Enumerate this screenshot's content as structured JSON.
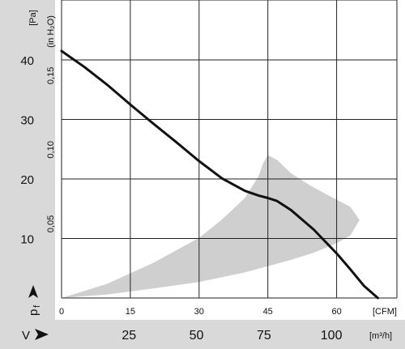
{
  "chart_data": {
    "type": "line",
    "x_label": "[CFM]",
    "x_unit_secondary": "[m³/h]",
    "y_unit": "[Pa]",
    "y_unit_secondary": "(in H₂O)",
    "y_symbol": "p",
    "y_symbol_sub": "f",
    "x_symbol": "V",
    "xlim": [
      0,
      70
    ],
    "ylim": [
      0,
      48
    ],
    "cfm_ticks": [
      "0",
      "15",
      "30",
      "45",
      "60"
    ],
    "cfm_tick_values": [
      0,
      15,
      30,
      45,
      60
    ],
    "m3h_ticks": [
      "25",
      "50",
      "75",
      "100"
    ],
    "m3h_tick_values": [
      25,
      50,
      75,
      100
    ],
    "pa_ticks": [
      "10",
      "20",
      "30",
      "40"
    ],
    "pa_tick_values": [
      10,
      20,
      30,
      40
    ],
    "h2o_ticks": [
      "0,05",
      "0,10",
      "0,15"
    ],
    "h2o_tick_values": [
      0.05,
      0.1,
      0.15
    ],
    "grid": true,
    "series": [
      {
        "x": [
          0,
          5,
          10,
          15,
          20,
          25,
          30,
          35,
          40,
          43,
          45,
          47,
          50,
          55,
          60,
          63,
          66,
          69
        ],
        "y": [
          41.5,
          38.8,
          35.8,
          32.5,
          29.3,
          26.2,
          23.0,
          20.1,
          18.0,
          17.2,
          16.8,
          16.3,
          14.8,
          11.5,
          7.5,
          4.8,
          2.0,
          0
        ]
      }
    ],
    "operating_region": {
      "x": [
        0,
        10,
        20,
        30,
        40,
        50,
        55,
        60,
        63,
        65,
        63,
        58,
        54,
        50,
        47,
        45,
        44,
        43,
        40,
        35,
        30,
        20,
        10,
        0
      ],
      "y": [
        0,
        0.6,
        1.6,
        2.7,
        4.3,
        6.4,
        7.6,
        9.2,
        10.5,
        13.1,
        15.3,
        17.3,
        19.0,
        21.0,
        23.2,
        24.0,
        22.7,
        20.5,
        16.8,
        13.2,
        10.1,
        5.9,
        2.4,
        0
      ]
    }
  }
}
